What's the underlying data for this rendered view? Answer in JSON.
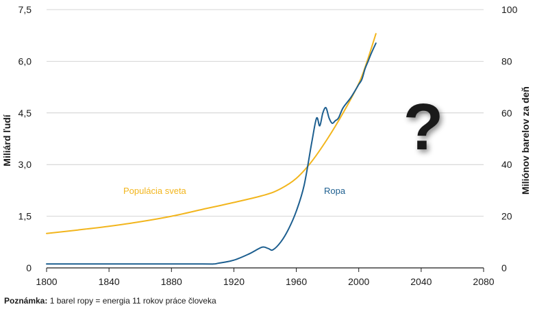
{
  "chart_data": {
    "type": "line",
    "x_ticks": [
      "1800",
      "1840",
      "1880",
      "1920",
      "1960",
      "2000",
      "2040",
      "2080"
    ],
    "xlim": [
      1800,
      2080
    ],
    "y_left": {
      "label": "Miliárd ľudí",
      "ticks": [
        "0",
        "1,5",
        "3,0",
        "4,5",
        "6,0",
        "7,5"
      ],
      "lim": [
        0,
        7.5
      ]
    },
    "y_right": {
      "label": "Miliónov barelov za deň",
      "ticks": [
        "0",
        "20",
        "40",
        "60",
        "80",
        "100"
      ],
      "lim": [
        0,
        100
      ]
    },
    "series": [
      {
        "name": "Populácia sveta",
        "axis": "left",
        "color": "#f2b51c",
        "x": [
          1800,
          1820,
          1840,
          1860,
          1880,
          1900,
          1920,
          1940,
          1950,
          1960,
          1970,
          1980,
          1990,
          2000,
          2005,
          2011
        ],
        "y": [
          1.0,
          1.1,
          1.21,
          1.34,
          1.5,
          1.7,
          1.9,
          2.12,
          2.3,
          2.6,
          3.1,
          3.75,
          4.5,
          5.35,
          5.95,
          6.8
        ]
      },
      {
        "name": "Ropa",
        "axis": "right",
        "color": "#1c5e8f",
        "x": [
          1800,
          1860,
          1900,
          1907,
          1910,
          1920,
          1930,
          1938,
          1942,
          1945,
          1950,
          1955,
          1960,
          1965,
          1970,
          1973,
          1975,
          1977,
          1979,
          1981,
          1983,
          1985,
          1987,
          1990,
          1995,
          2000,
          2002,
          2004,
          2006,
          2008,
          2011
        ],
        "y": [
          1.5,
          1.5,
          1.5,
          1.5,
          1.8,
          3,
          5.5,
          8,
          7.5,
          7,
          10,
          15,
          22,
          32,
          49,
          58,
          55,
          60,
          62,
          58,
          56,
          57,
          58,
          62,
          66,
          71,
          73,
          77,
          80,
          83,
          87
        ]
      }
    ],
    "annotation": "?"
  },
  "note": {
    "bold": "Poznámka:",
    "text": " 1 barel ropy = energia 11 rokov práce človeka"
  }
}
